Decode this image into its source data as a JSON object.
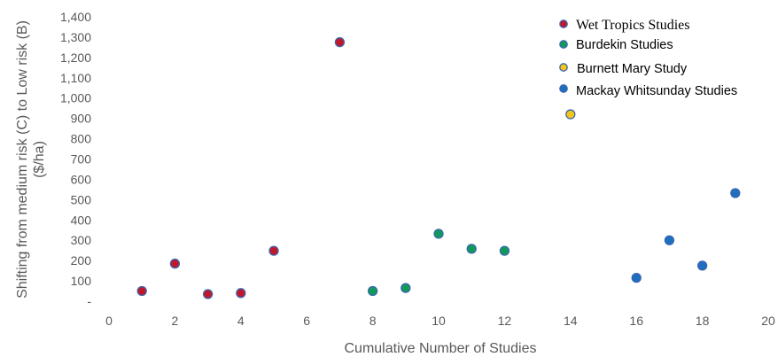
{
  "chart_data": {
    "type": "scatter",
    "xlabel": "Cumulative Number of Studies",
    "ylabel_lines": [
      "Shifting from medium risk (C) to Low risk (B)",
      "($/ha)"
    ],
    "xlim": [
      0,
      20
    ],
    "ylim": [
      0,
      1400
    ],
    "xticks": [
      0,
      2,
      4,
      6,
      8,
      10,
      12,
      14,
      16,
      18,
      20
    ],
    "xtick_labels": [
      "0",
      "2",
      "4",
      "6",
      "8",
      "10",
      "12",
      "14",
      "16",
      "18",
      "20"
    ],
    "yticks": [
      0,
      100,
      200,
      300,
      400,
      500,
      600,
      700,
      800,
      900,
      1000,
      1100,
      1200,
      1300,
      1400
    ],
    "ytick_labels": [
      "-",
      "100",
      "200",
      "300",
      "400",
      "500",
      "600",
      "700",
      "800",
      "900",
      "1,000",
      "1,100",
      "1,200",
      "1,300",
      "1,400"
    ],
    "grid": false,
    "legend_position": "top-right",
    "series": [
      {
        "name": "Wet Tropics Studies",
        "color": "#c0182a",
        "points": [
          [
            1,
            50
          ],
          [
            2,
            185
          ],
          [
            3,
            35
          ],
          [
            4,
            40
          ],
          [
            5,
            248
          ],
          [
            7,
            1275
          ]
        ]
      },
      {
        "name": "Burdekin Studies",
        "color": "#0f9a5a",
        "points": [
          [
            8,
            50
          ],
          [
            9,
            65
          ],
          [
            10,
            332
          ],
          [
            11,
            258
          ],
          [
            12,
            248
          ]
        ]
      },
      {
        "name": "Burnett Mary Study",
        "color": "#f5c518",
        "points": [
          [
            14,
            920
          ]
        ]
      },
      {
        "name": "Mackay Whitsunday Studies",
        "color": "#1e6fc0",
        "points": [
          [
            16,
            115
          ],
          [
            17,
            300
          ],
          [
            18,
            175
          ],
          [
            19,
            532
          ]
        ]
      }
    ],
    "marker_edge_color": "#3a66b0"
  }
}
